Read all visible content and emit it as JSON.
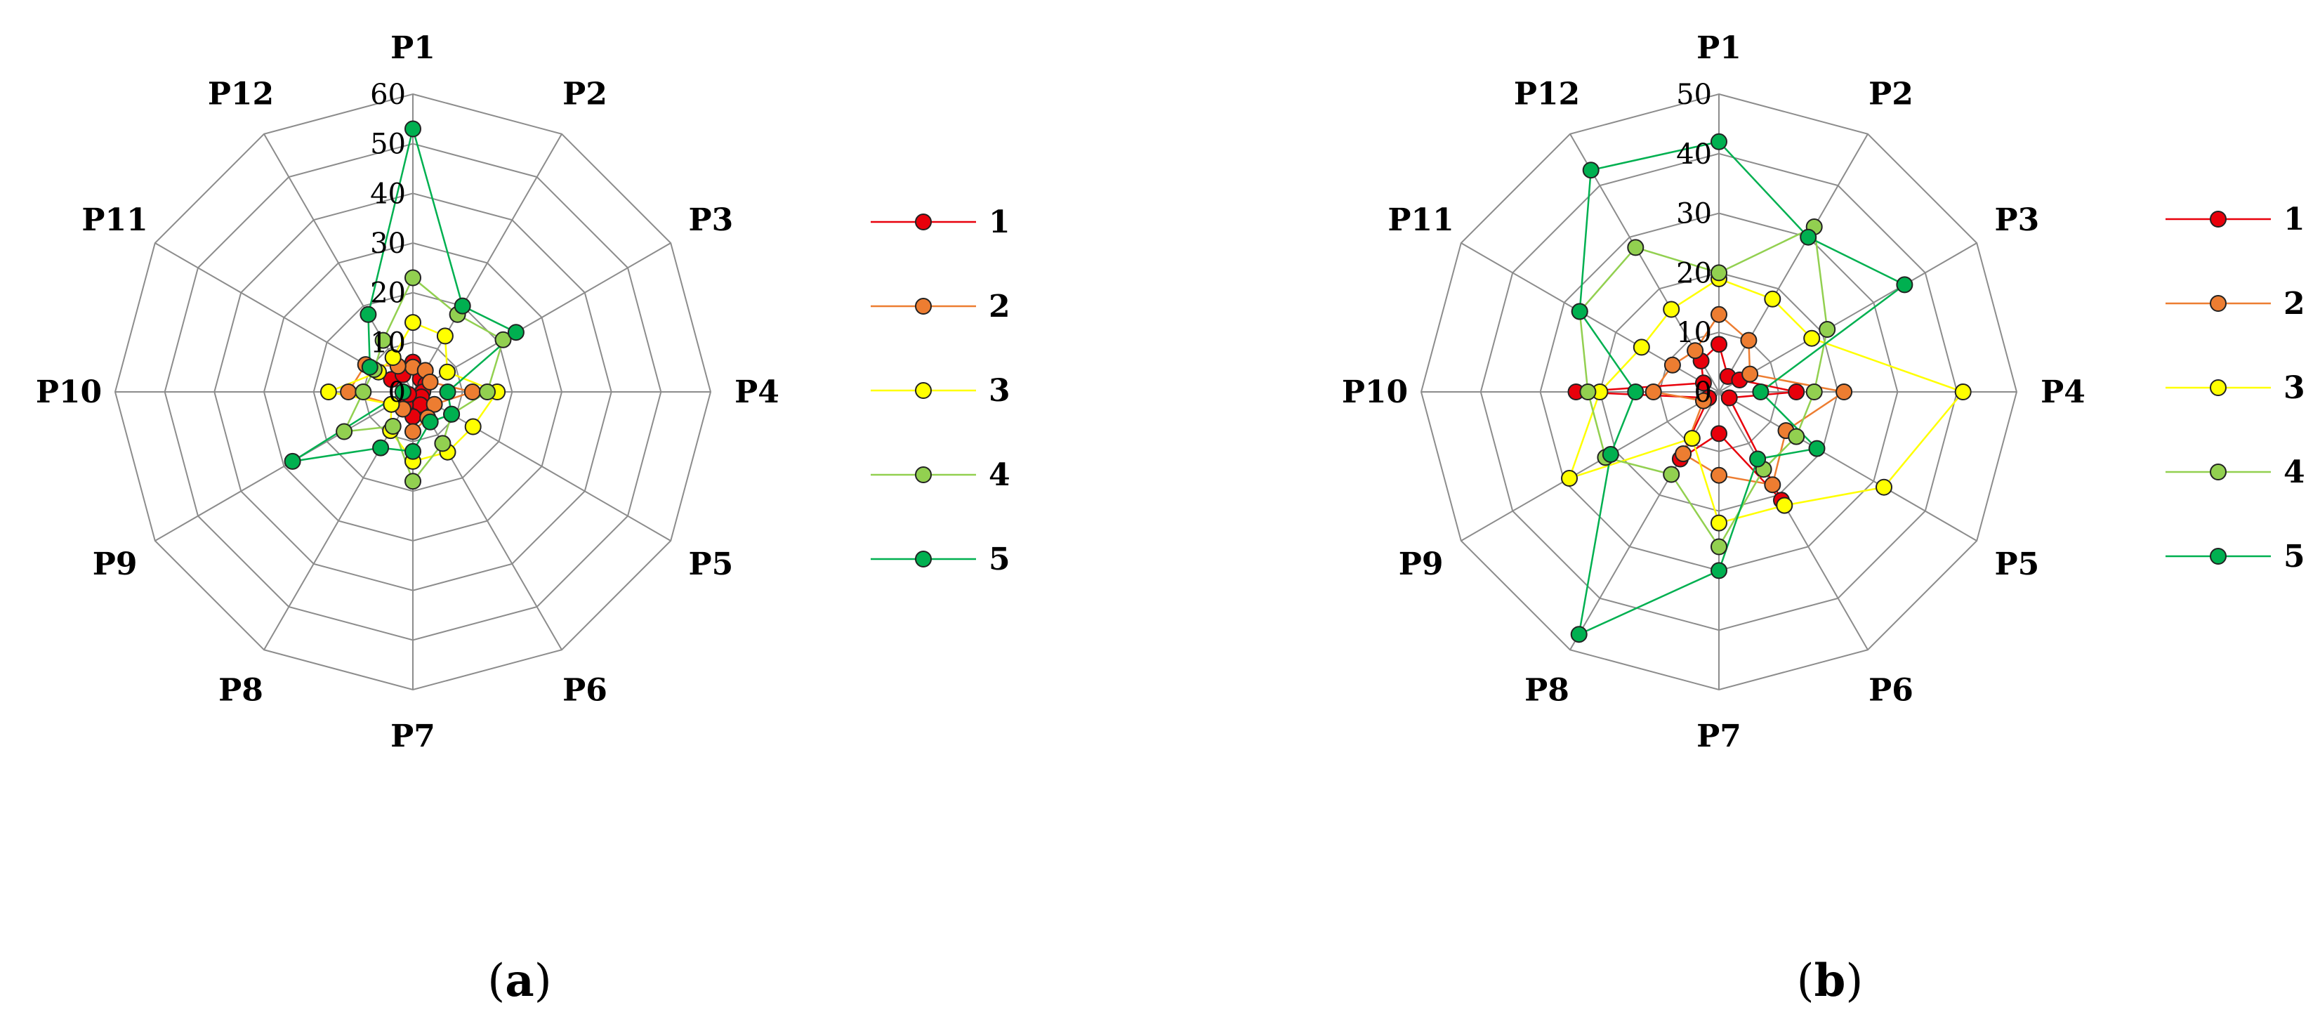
{
  "chart_data": [
    {
      "type": "radar",
      "panel_label": {
        "open": "(",
        "letter": "a",
        "close": ")"
      },
      "axes": [
        "P1",
        "P2",
        "P3",
        "P4",
        "P5",
        "P6",
        "P7",
        "P8",
        "P9",
        "P10",
        "P11",
        "P12"
      ],
      "ticks": [
        "0",
        "10",
        "20",
        "30",
        "40",
        "50",
        "60"
      ],
      "rlim": [
        0,
        60
      ],
      "grid": true,
      "legend_position": "right",
      "series": [
        {
          "name": "1",
          "color": "#e8000b",
          "values": [
            6,
            3,
            3,
            2,
            2,
            3,
            5,
            3,
            1,
            2,
            5,
            4
          ]
        },
        {
          "name": "2",
          "color": "#ed7d31",
          "values": [
            5,
            5,
            4,
            12,
            5,
            6,
            8,
            4,
            5,
            13,
            11,
            6
          ]
        },
        {
          "name": "3",
          "color": "#ffff00",
          "values": [
            14,
            13,
            8,
            17,
            14,
            14,
            14,
            9,
            5,
            17,
            8,
            8
          ]
        },
        {
          "name": "4",
          "color": "#92d050",
          "values": [
            23,
            18,
            21,
            15,
            9,
            12,
            18,
            8,
            16,
            10,
            9,
            12
          ]
        },
        {
          "name": "5",
          "color": "#00b050",
          "values": [
            53,
            20,
            24,
            7,
            9,
            7,
            12,
            13,
            28,
            2,
            10,
            18
          ]
        }
      ]
    },
    {
      "type": "radar",
      "panel_label": {
        "open": "(",
        "letter": "b",
        "close": ")"
      },
      "axes": [
        "P1",
        "P2",
        "P3",
        "P4",
        "P5",
        "P6",
        "P7",
        "P8",
        "P9",
        "P10",
        "P11",
        "P12"
      ],
      "ticks": [
        "0",
        "10",
        "20",
        "30",
        "40",
        "50"
      ],
      "rlim": [
        0,
        50
      ],
      "grid": true,
      "legend_position": "right",
      "series": [
        {
          "name": "1",
          "color": "#e8000b",
          "values": [
            8,
            3,
            4,
            13,
            2,
            21,
            7,
            13,
            2,
            24,
            3,
            6
          ]
        },
        {
          "name": "2",
          "color": "#ed7d31",
          "values": [
            13,
            10,
            6,
            21,
            13,
            18,
            14,
            12,
            3,
            11,
            9,
            8
          ]
        },
        {
          "name": "3",
          "color": "#ffff00",
          "values": [
            19,
            18,
            18,
            41,
            32,
            22,
            22,
            9,
            29,
            20,
            15,
            16
          ]
        },
        {
          "name": "4",
          "color": "#92d050",
          "values": [
            20,
            32,
            21,
            16,
            15,
            15,
            26,
            16,
            22,
            22,
            27,
            28
          ]
        },
        {
          "name": "5",
          "color": "#00b050",
          "values": [
            42,
            30,
            36,
            7,
            19,
            13,
            30,
            47,
            21,
            14,
            27,
            43
          ]
        }
      ]
    }
  ]
}
